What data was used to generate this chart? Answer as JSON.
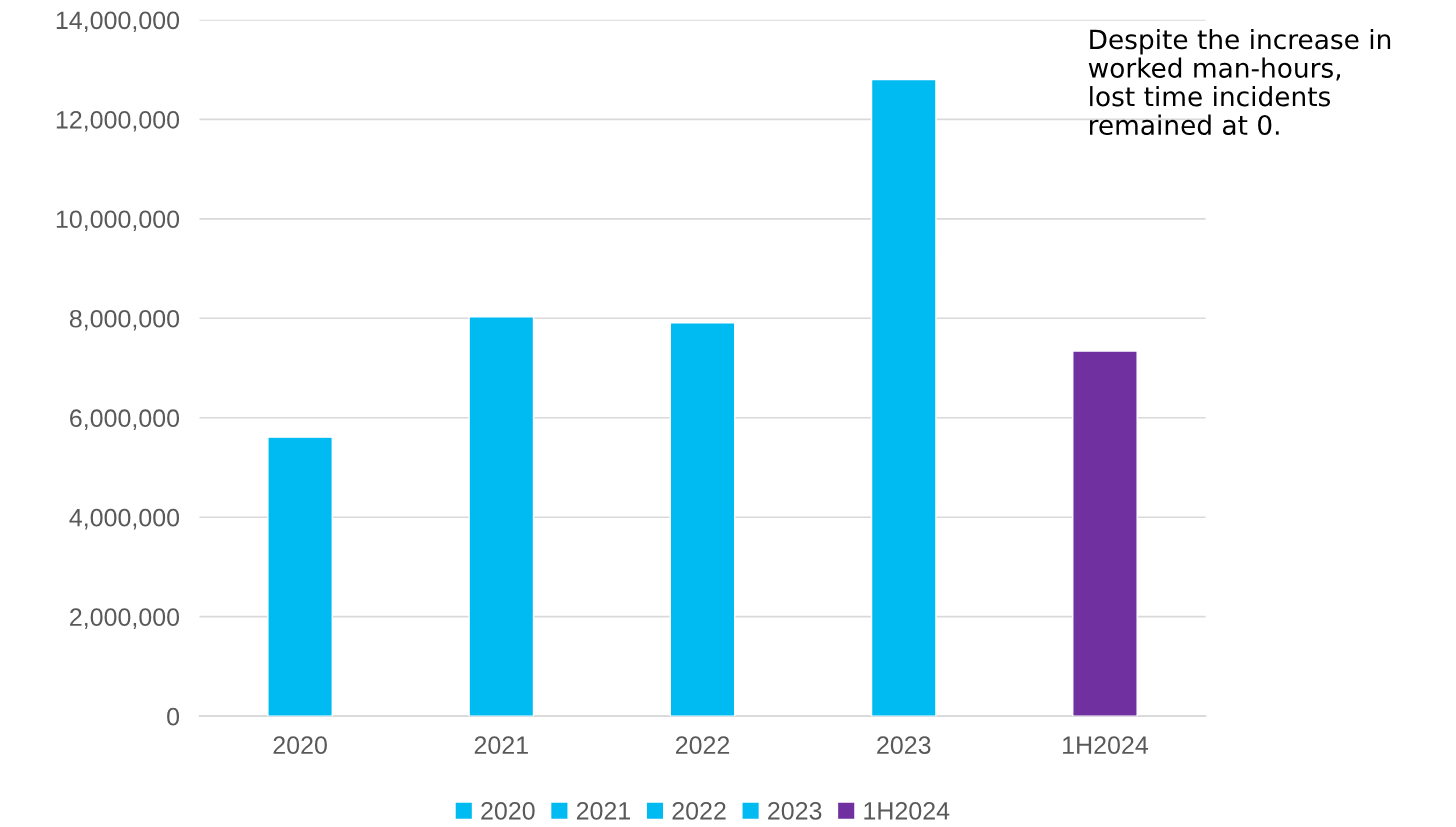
{
  "chart_data": {
    "type": "bar",
    "categories": [
      "2020",
      "2021",
      "2022",
      "2023",
      "1H2024"
    ],
    "series": [
      {
        "name": "2020",
        "color": "#00bbf2",
        "values": [
          5610000,
          null,
          null,
          null,
          null
        ]
      },
      {
        "name": "2021",
        "color": "#00bbf2",
        "values": [
          null,
          8030000,
          null,
          null,
          null
        ]
      },
      {
        "name": "2022",
        "color": "#00bbf2",
        "values": [
          null,
          null,
          7910000,
          null,
          null
        ]
      },
      {
        "name": "2023",
        "color": "#00bbf2",
        "values": [
          null,
          null,
          null,
          12800000,
          null
        ]
      },
      {
        "name": "1H2024",
        "color": "#7030a0",
        "values": [
          null,
          null,
          null,
          null,
          7340000
        ]
      }
    ],
    "ylim": [
      0,
      14000000
    ],
    "yticks": [
      0,
      {
        "value": 2000000,
        "label": "2,000,000"
      },
      {
        "value": 4000000,
        "label": "4,000,000"
      },
      {
        "value": 6000000,
        "label": "6,000,000"
      },
      {
        "value": 8000000,
        "label": "8,000,000"
      },
      {
        "value": 10000000,
        "label": "10,000,000"
      },
      {
        "value": 12000000,
        "label": "12,000,000"
      },
      {
        "value": 14000000,
        "label": "14,000,000"
      }
    ],
    "grid": "y",
    "legend": "bottom",
    "annotations": [
      "Despite the increase in\nworked man-hours,\nlost time incidents\nremained at 0."
    ]
  }
}
